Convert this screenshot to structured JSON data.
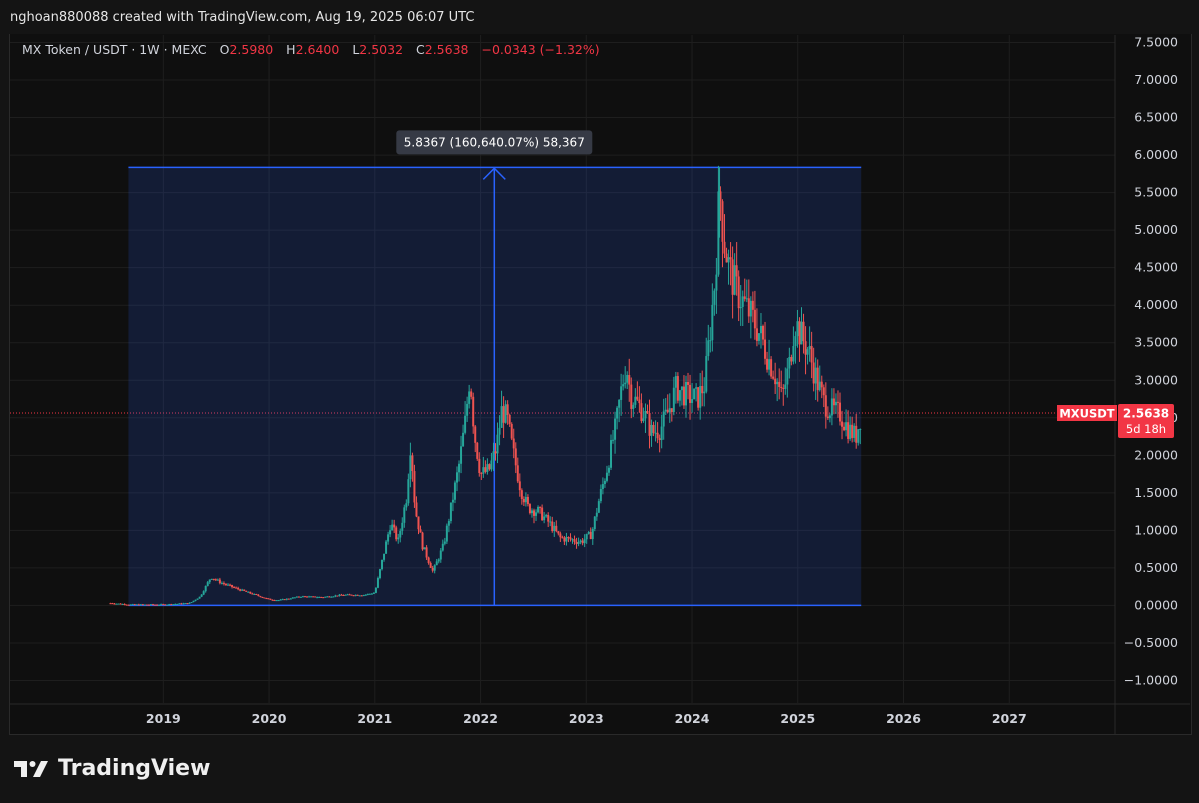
{
  "credit": "nghoan880088 created with TradingView.com, Aug 19, 2025 06:07 UTC",
  "legend": {
    "symbol": "MX Token / USDT · 1W · MEXC",
    "o_label": "O",
    "o_value": "2.5980",
    "h_label": "H",
    "h_value": "2.6400",
    "l_label": "L",
    "l_value": "2.5032",
    "c_label": "C",
    "c_value": "2.5638",
    "change": "−0.0343 (−1.32%)"
  },
  "measure_label": "5.8367 (160,640.07%) 58,367",
  "price_badge": {
    "ticker": "MXUSDT",
    "price": "2.5638",
    "countdown": "5d 18h"
  },
  "brand": "TradingView",
  "colors": {
    "up": "#26a69a",
    "down": "#ef5350",
    "range": "#2962ff",
    "badge": "#f23645"
  },
  "chart_data": {
    "type": "candlestick",
    "y_ticks": [
      "7.5000",
      "7.0000",
      "6.5000",
      "6.0000",
      "5.5000",
      "5.0000",
      "4.5000",
      "4.0000",
      "3.5000",
      "3.0000",
      "2.5000",
      "2.0000",
      "1.5000",
      "1.0000",
      "0.5000",
      "0.0000",
      "−0.5000",
      "−1.0000"
    ],
    "y_tick_values": [
      7.5,
      7,
      6.5,
      6,
      5.5,
      5,
      4.5,
      4,
      3.5,
      3,
      2.5,
      2,
      1.5,
      1,
      0.5,
      0,
      -0.5,
      -1
    ],
    "x_ticks": [
      "2019",
      "2020",
      "2021",
      "2022",
      "2023",
      "2024",
      "2025",
      "2026",
      "2027"
    ],
    "x_tick_values": [
      2019,
      2020,
      2021,
      2022,
      2023,
      2024,
      2025,
      2026,
      2027
    ],
    "ylim": [
      -1.3,
      7.6
    ],
    "xlim": [
      2017.55,
      2028.0
    ],
    "range_box": {
      "x_start": 2018.67,
      "x_end": 2025.6,
      "y_low": 0.0,
      "y_high": 5.8367,
      "x_arrow": 2022.13
    },
    "last_price": 2.5638,
    "series_path": [
      [
        2018.5,
        0.03
      ],
      [
        2018.6,
        0.02
      ],
      [
        2018.7,
        0.01
      ],
      [
        2019.0,
        0.01
      ],
      [
        2019.25,
        0.03
      ],
      [
        2019.35,
        0.12
      ],
      [
        2019.45,
        0.38
      ],
      [
        2019.55,
        0.3
      ],
      [
        2019.7,
        0.22
      ],
      [
        2019.85,
        0.15
      ],
      [
        2020.0,
        0.08
      ],
      [
        2020.1,
        0.07
      ],
      [
        2020.3,
        0.12
      ],
      [
        2020.5,
        0.11
      ],
      [
        2020.7,
        0.14
      ],
      [
        2020.9,
        0.14
      ],
      [
        2021.0,
        0.17
      ],
      [
        2021.07,
        0.6
      ],
      [
        2021.15,
        1.1
      ],
      [
        2021.22,
        0.85
      ],
      [
        2021.3,
        1.45
      ],
      [
        2021.34,
        2.2
      ],
      [
        2021.38,
        1.3
      ],
      [
        2021.45,
        0.8
      ],
      [
        2021.55,
        0.45
      ],
      [
        2021.65,
        0.8
      ],
      [
        2021.72,
        1.3
      ],
      [
        2021.8,
        1.9
      ],
      [
        2021.86,
        2.5
      ],
      [
        2021.9,
        3.1
      ],
      [
        2021.94,
        2.3
      ],
      [
        2022.0,
        1.75
      ],
      [
        2022.08,
        1.8
      ],
      [
        2022.15,
        2.1
      ],
      [
        2022.2,
        2.6
      ],
      [
        2022.25,
        2.5
      ],
      [
        2022.3,
        2.1
      ],
      [
        2022.38,
        1.55
      ],
      [
        2022.45,
        1.3
      ],
      [
        2022.55,
        1.25
      ],
      [
        2022.65,
        1.1
      ],
      [
        2022.75,
        0.9
      ],
      [
        2022.85,
        0.88
      ],
      [
        2022.95,
        0.85
      ],
      [
        2023.05,
        0.95
      ],
      [
        2023.12,
        1.4
      ],
      [
        2023.2,
        1.85
      ],
      [
        2023.28,
        2.4
      ],
      [
        2023.34,
        2.95
      ],
      [
        2023.38,
        3.2
      ],
      [
        2023.42,
        2.8
      ],
      [
        2023.48,
        2.7
      ],
      [
        2023.55,
        2.55
      ],
      [
        2023.62,
        2.3
      ],
      [
        2023.7,
        2.35
      ],
      [
        2023.78,
        2.6
      ],
      [
        2023.85,
        2.9
      ],
      [
        2023.95,
        2.8
      ],
      [
        2024.05,
        2.75
      ],
      [
        2024.12,
        2.95
      ],
      [
        2024.18,
        3.8
      ],
      [
        2024.22,
        4.4
      ],
      [
        2024.26,
        5.55
      ],
      [
        2024.3,
        4.9
      ],
      [
        2024.35,
        4.5
      ],
      [
        2024.42,
        4.2
      ],
      [
        2024.5,
        4.0
      ],
      [
        2024.58,
        3.8
      ],
      [
        2024.66,
        3.55
      ],
      [
        2024.72,
        3.3
      ],
      [
        2024.78,
        3.1
      ],
      [
        2024.85,
        2.75
      ],
      [
        2024.92,
        3.2
      ],
      [
        2024.97,
        3.8
      ],
      [
        2025.03,
        3.6
      ],
      [
        2025.1,
        3.4
      ],
      [
        2025.18,
        3.0
      ],
      [
        2025.25,
        2.7
      ],
      [
        2025.32,
        2.6
      ],
      [
        2025.4,
        2.55
      ],
      [
        2025.48,
        2.35
      ],
      [
        2025.55,
        2.25
      ],
      [
        2025.6,
        2.55
      ]
    ]
  }
}
